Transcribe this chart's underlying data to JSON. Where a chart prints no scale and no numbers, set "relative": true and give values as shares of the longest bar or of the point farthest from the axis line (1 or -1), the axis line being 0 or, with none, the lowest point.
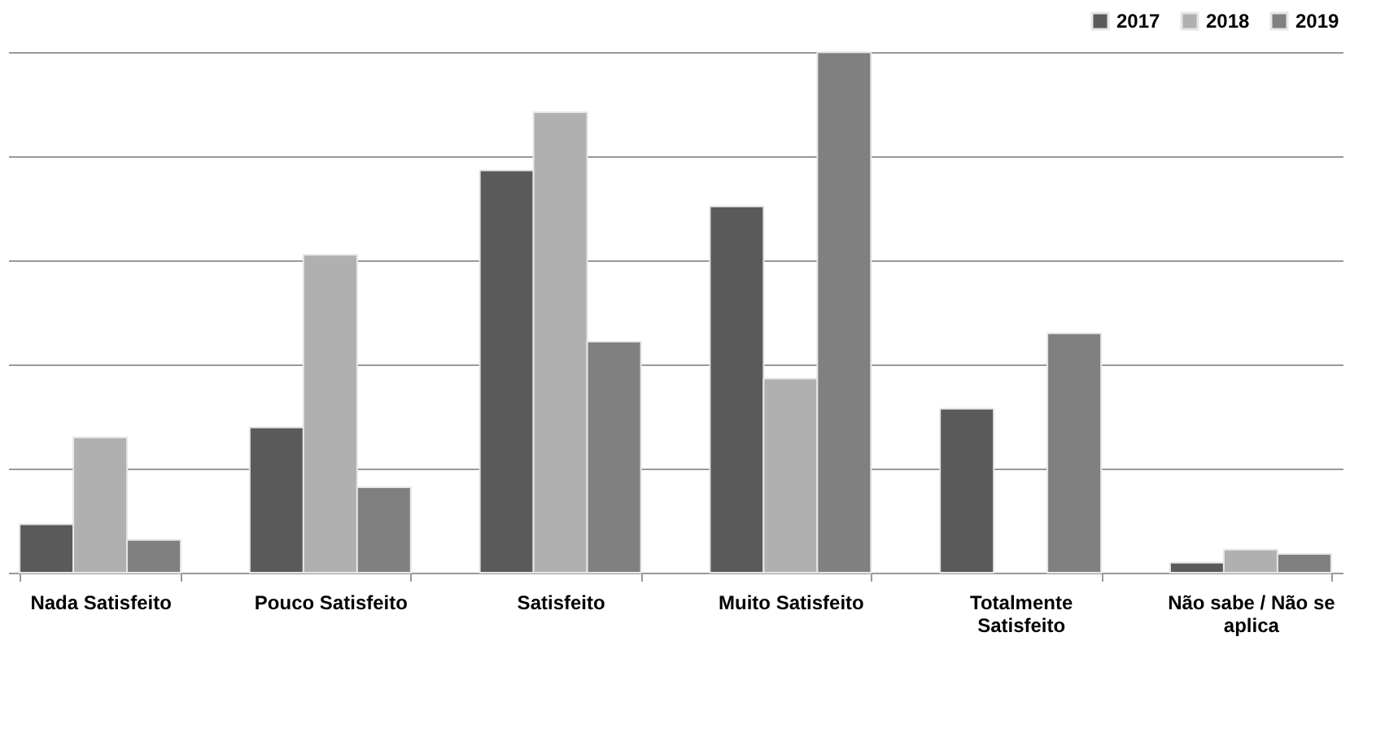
{
  "chart_data": {
    "type": "bar",
    "relative": true,
    "grid": "y",
    "legend": "top right",
    "categories": [
      "Nada Satisfeito",
      "Pouco Satisfeito",
      "Satisfeito",
      "Muito Satisfeito",
      "Totalmente Satisfeito",
      "Não sabe / Não se aplica"
    ],
    "series": [
      {
        "name": "2017",
        "color": "#5a5a5a",
        "values": [
          0.093,
          0.279,
          0.773,
          0.704,
          0.315,
          0.019
        ]
      },
      {
        "name": "2018",
        "color": "#b0b0b0",
        "values": [
          0.26,
          0.611,
          0.885,
          0.373,
          null,
          0.044
        ]
      },
      {
        "name": "2019",
        "color": "#808080",
        "values": [
          0.063,
          0.164,
          0.444,
          1,
          0.46,
          0.036
        ]
      }
    ]
  }
}
